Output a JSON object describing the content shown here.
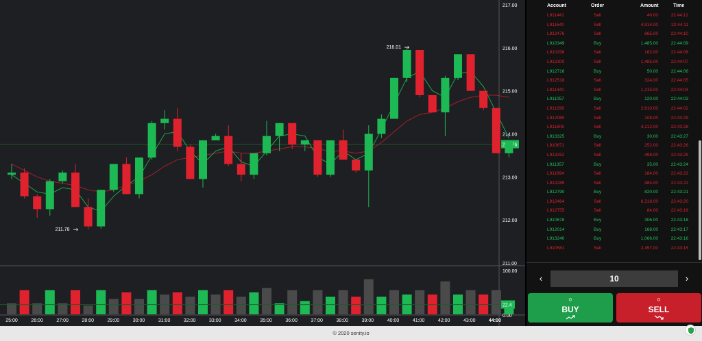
{
  "chart_data": {
    "type": "candlestick",
    "x_ticks": [
      "25:00",
      "26:00",
      "27:00",
      "28:00",
      "29:00",
      "30:00",
      "31:00",
      "32:00",
      "33:00",
      "34:00",
      "35:00",
      "36:00",
      "37:00",
      "38:00",
      "39:00",
      "40:00",
      "41:00",
      "42:00",
      "43:00",
      "44:00"
    ],
    "y_ticks": [
      "217.00",
      "216.00",
      "215.00",
      "214.00",
      "213.00",
      "212.00",
      "211.00"
    ],
    "volume_ticks": [
      "100.00",
      "0.00"
    ],
    "ylim": [
      211.0,
      217.0
    ],
    "candles": [
      {
        "o": 213.05,
        "h": 213.3,
        "l": 212.95,
        "c": 213.1
      },
      {
        "o": 213.1,
        "h": 213.2,
        "l": 212.5,
        "c": 212.55
      },
      {
        "o": 212.55,
        "h": 212.6,
        "l": 212.05,
        "c": 212.25
      },
      {
        "o": 212.25,
        "h": 212.95,
        "l": 212.1,
        "c": 212.9
      },
      {
        "o": 212.9,
        "h": 213.15,
        "l": 212.85,
        "c": 213.1
      },
      {
        "o": 213.1,
        "h": 213.3,
        "l": 212.3,
        "c": 212.3
      },
      {
        "o": 212.3,
        "h": 212.5,
        "l": 211.78,
        "c": 211.85
      },
      {
        "o": 211.85,
        "h": 212.7,
        "l": 211.8,
        "c": 212.7
      },
      {
        "o": 212.7,
        "h": 213.3,
        "l": 212.65,
        "c": 213.3
      },
      {
        "o": 213.3,
        "h": 213.45,
        "l": 212.6,
        "c": 212.6
      },
      {
        "o": 212.6,
        "h": 213.45,
        "l": 212.5,
        "c": 213.45
      },
      {
        "o": 213.45,
        "h": 214.3,
        "l": 213.4,
        "c": 214.25
      },
      {
        "o": 214.25,
        "h": 214.55,
        "l": 214.1,
        "c": 214.35
      },
      {
        "o": 214.35,
        "h": 214.6,
        "l": 213.6,
        "c": 213.7
      },
      {
        "o": 213.7,
        "h": 213.75,
        "l": 212.95,
        "c": 212.95
      },
      {
        "o": 212.95,
        "h": 213.85,
        "l": 212.75,
        "c": 213.85
      },
      {
        "o": 213.85,
        "h": 214.0,
        "l": 213.85,
        "c": 213.95
      },
      {
        "o": 213.95,
        "h": 214.2,
        "l": 213.25,
        "c": 213.3
      },
      {
        "o": 213.3,
        "h": 213.55,
        "l": 212.9,
        "c": 213.05
      },
      {
        "o": 213.05,
        "h": 213.55,
        "l": 212.95,
        "c": 213.55
      },
      {
        "o": 213.55,
        "h": 214.3,
        "l": 213.5,
        "c": 213.95
      },
      {
        "o": 213.95,
        "h": 214.25,
        "l": 213.6,
        "c": 214.25
      },
      {
        "o": 214.25,
        "h": 214.25,
        "l": 213.65,
        "c": 213.75
      },
      {
        "o": 213.75,
        "h": 213.85,
        "l": 213.6,
        "c": 213.85
      },
      {
        "o": 213.85,
        "h": 213.85,
        "l": 213.0,
        "c": 213.05
      },
      {
        "o": 213.05,
        "h": 213.85,
        "l": 213.0,
        "c": 213.85
      },
      {
        "o": 213.85,
        "h": 214.1,
        "l": 213.4,
        "c": 213.4
      },
      {
        "o": 213.4,
        "h": 213.4,
        "l": 213.1,
        "c": 213.15
      },
      {
        "o": 213.15,
        "h": 214.2,
        "l": 212.3,
        "c": 214.0
      },
      {
        "o": 214.0,
        "h": 214.45,
        "l": 213.9,
        "c": 214.35
      },
      {
        "o": 214.35,
        "h": 215.3,
        "l": 214.35,
        "c": 215.3
      },
      {
        "o": 215.3,
        "h": 216.01,
        "l": 215.2,
        "c": 215.95
      },
      {
        "o": 215.95,
        "h": 215.95,
        "l": 214.85,
        "c": 214.9
      },
      {
        "o": 214.9,
        "h": 214.9,
        "l": 214.5,
        "c": 214.5
      },
      {
        "o": 214.5,
        "h": 215.35,
        "l": 213.95,
        "c": 215.3
      },
      {
        "o": 215.3,
        "h": 215.85,
        "l": 215.25,
        "c": 215.85
      },
      {
        "o": 215.85,
        "h": 215.85,
        "l": 215.0,
        "c": 215.0
      },
      {
        "o": 215.0,
        "h": 215.0,
        "l": 214.55,
        "c": 214.6
      },
      {
        "o": 214.6,
        "h": 214.6,
        "l": 213.55,
        "c": 213.55
      },
      {
        "o": 213.55,
        "h": 213.8,
        "l": 213.45,
        "c": 213.8
      }
    ],
    "volumes": [
      25,
      55,
      25,
      55,
      25,
      55,
      20,
      55,
      35,
      50,
      35,
      55,
      45,
      50,
      40,
      55,
      45,
      55,
      40,
      50,
      60,
      25,
      55,
      30,
      55,
      40,
      55,
      40,
      80,
      40,
      55,
      45,
      55,
      45,
      75,
      45,
      55,
      45,
      55,
      30
    ],
    "sma_fast": [
      213.05,
      212.85,
      212.65,
      212.6,
      212.75,
      212.7,
      212.3,
      212.2,
      212.55,
      212.8,
      213.0,
      213.5,
      214.0,
      214.05,
      213.6,
      213.3,
      213.6,
      213.7,
      213.35,
      213.25,
      213.6,
      213.95,
      214.0,
      213.95,
      213.45,
      213.3,
      213.6,
      213.4,
      213.55,
      214.1,
      214.7,
      215.3,
      215.45,
      215.0,
      214.85,
      215.4,
      215.45,
      215.1,
      214.5,
      213.9
    ],
    "sma_slow": [
      213.3,
      213.15,
      213.0,
      212.9,
      212.85,
      212.8,
      212.7,
      212.65,
      212.7,
      212.8,
      212.9,
      213.05,
      213.25,
      213.4,
      213.45,
      213.5,
      213.55,
      213.6,
      213.55,
      213.55,
      213.6,
      213.65,
      213.7,
      213.7,
      213.65,
      213.6,
      213.6,
      213.55,
      213.6,
      213.8,
      214.05,
      214.3,
      214.45,
      214.5,
      214.6,
      214.75,
      214.85,
      214.9,
      214.9,
      214.85
    ],
    "current_price": "213.76",
    "current_price_value": 213.76,
    "current_volume": "22.4",
    "current_volume_value": 22.4,
    "high_label": "216.01",
    "low_label": "211.78",
    "colors": {
      "up": "#1db954",
      "down": "#e0222f",
      "bg": "#1e1f22",
      "text": "#ffffff",
      "sma_fast": "#19a84a",
      "sma_slow": "#a3202b",
      "price_line": "#1c5a2a"
    }
  },
  "trades": {
    "headers": {
      "account": "Account",
      "order": "Order",
      "amount": "Amount",
      "time": "Time"
    },
    "rows": [
      {
        "account": "L911441",
        "order": "Sell",
        "amount": "40.00",
        "time": "22:44:12"
      },
      {
        "account": "L911640",
        "order": "Sell",
        "amount": "4,914.00",
        "time": "22:44:11"
      },
      {
        "account": "L912476",
        "order": "Sell",
        "amount": "865.00",
        "time": "22:44:10"
      },
      {
        "account": "L910349",
        "order": "Buy",
        "amount": "1,485.00",
        "time": "22:44:09"
      },
      {
        "account": "L910258",
        "order": "Sell",
        "amount": "162.00",
        "time": "22:44:08"
      },
      {
        "account": "L912300",
        "order": "Sell",
        "amount": "1,485.00",
        "time": "22:44:07"
      },
      {
        "account": "L912716",
        "order": "Buy",
        "amount": "50.00",
        "time": "22:44:06"
      },
      {
        "account": "L912518",
        "order": "Sell",
        "amount": "324.00",
        "time": "22:44:05"
      },
      {
        "account": "L911440",
        "order": "Sell",
        "amount": "1,215.00",
        "time": "22:44:04"
      },
      {
        "account": "L911057",
        "order": "Buy",
        "amount": "120.00",
        "time": "22:44:03"
      },
      {
        "account": "L911296",
        "order": "Sell",
        "amount": "2,610.00",
        "time": "22:44:02"
      },
      {
        "account": "L912060",
        "order": "Sell",
        "amount": "108.00",
        "time": "22:43:29"
      },
      {
        "account": "L911609",
        "order": "Sell",
        "amount": "4,212.00",
        "time": "22:43:28"
      },
      {
        "account": "L913325",
        "order": "Buy",
        "amount": "30.00",
        "time": "22:43:27"
      },
      {
        "account": "L910671",
        "order": "Sell",
        "amount": "252.00",
        "time": "22:43:26"
      },
      {
        "account": "L913252",
        "order": "Sell",
        "amount": "498.00",
        "time": "22:43:25"
      },
      {
        "account": "L911357",
        "order": "Buy",
        "amount": "35.00",
        "time": "22:43:24"
      },
      {
        "account": "L911994",
        "order": "Sell",
        "amount": "184.00",
        "time": "22:43:23"
      },
      {
        "account": "L912285",
        "order": "Sell",
        "amount": "984.00",
        "time": "22:43:22"
      },
      {
        "account": "L912790",
        "order": "Buy",
        "amount": "820.00",
        "time": "22:43:21"
      },
      {
        "account": "L912484",
        "order": "Sell",
        "amount": "6,318.00",
        "time": "22:43:20"
      },
      {
        "account": "L912755",
        "order": "Sell",
        "amount": "84.00",
        "time": "22:43:19"
      },
      {
        "account": "L910678",
        "order": "Buy",
        "amount": "306.00",
        "time": "22:43:18"
      },
      {
        "account": "L912014",
        "order": "Buy",
        "amount": "168.00",
        "time": "22:43:17"
      },
      {
        "account": "L913240",
        "order": "Buy",
        "amount": "1,066.00",
        "time": "22:43:16"
      },
      {
        "account": "L910581",
        "order": "Sell",
        "amount": "2,457.00",
        "time": "22:43:15"
      }
    ]
  },
  "quantity": {
    "value": "10",
    "decrement_icon": "chevron-left-icon",
    "increment_icon": "chevron-right-icon"
  },
  "buy": {
    "count": "0",
    "label": "BUY",
    "icon": "trend-up-icon",
    "color": "#1e9e4a"
  },
  "sell": {
    "count": "0",
    "label": "SELL",
    "icon": "trend-down-icon",
    "color": "#c8202b"
  },
  "footer": {
    "text": "© 2020 senity.io"
  },
  "colors": {
    "buy_text": "#22c55e",
    "sell_text": "#e0222f"
  }
}
